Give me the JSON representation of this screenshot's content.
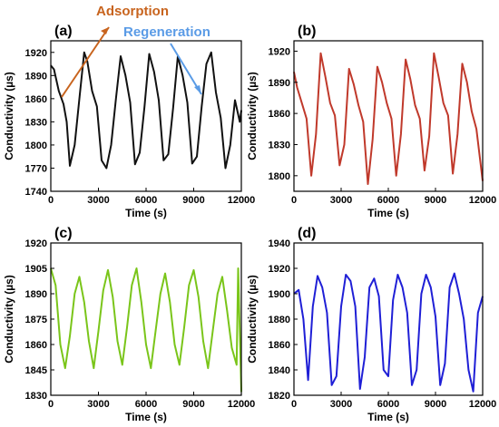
{
  "annotations": {
    "adsorption": "Adsorption",
    "regeneration": "Regeneration",
    "adsorption_color": "#c8641e",
    "regeneration_color": "#5a9be6"
  },
  "chart_data": [
    {
      "panel": "(a)",
      "type": "line",
      "xlabel": "Time (s)",
      "ylabel": "Conductivity (µs)",
      "xlim": [
        0,
        12000
      ],
      "ylim": [
        1740,
        1935
      ],
      "xticks": [
        0,
        3000,
        6000,
        9000,
        12000
      ],
      "yticks": [
        1740,
        1770,
        1800,
        1830,
        1860,
        1890,
        1920
      ],
      "color": "#111111",
      "series": [
        {
          "x": [
            0,
            200,
            500,
            800,
            1000,
            1200,
            1500,
            1800,
            2100,
            2300,
            2600,
            2900,
            3200,
            3500,
            3800,
            4100,
            4400,
            4700,
            5000,
            5300,
            5600,
            5900,
            6200,
            6500,
            6800,
            7100,
            7400,
            7700,
            8000,
            8300,
            8600,
            8900,
            9200,
            9500,
            9800,
            10100,
            10400,
            10700,
            11000,
            11300,
            11600,
            11900,
            12000
          ],
          "y": [
            1903,
            1898,
            1870,
            1853,
            1830,
            1773,
            1800,
            1860,
            1920,
            1908,
            1870,
            1850,
            1780,
            1770,
            1800,
            1860,
            1915,
            1890,
            1855,
            1775,
            1790,
            1850,
            1918,
            1895,
            1858,
            1780,
            1788,
            1848,
            1915,
            1890,
            1855,
            1776,
            1785,
            1850,
            1905,
            1920,
            1868,
            1835,
            1770,
            1800,
            1858,
            1830,
            1845
          ]
        }
      ]
    },
    {
      "panel": "(b)",
      "type": "line",
      "xlabel": "Time (s)",
      "ylabel": "Conductivity (µs)",
      "xlim": [
        0,
        12000
      ],
      "ylim": [
        1785,
        1930
      ],
      "xticks": [
        0,
        3000,
        6000,
        9000,
        12000
      ],
      "yticks": [
        1800,
        1830,
        1860,
        1890,
        1920
      ],
      "color": "#c0392b",
      "series": [
        {
          "x": [
            0,
            200,
            500,
            800,
            1100,
            1400,
            1700,
            2000,
            2300,
            2600,
            2900,
            3200,
            3500,
            3800,
            4100,
            4400,
            4700,
            5000,
            5300,
            5600,
            5900,
            6200,
            6500,
            6800,
            7100,
            7400,
            7700,
            8000,
            8300,
            8600,
            8900,
            9200,
            9500,
            9800,
            10100,
            10400,
            10700,
            11000,
            11300,
            11600,
            12000
          ],
          "y": [
            1900,
            1885,
            1870,
            1855,
            1800,
            1840,
            1918,
            1895,
            1870,
            1858,
            1810,
            1830,
            1903,
            1888,
            1868,
            1852,
            1792,
            1835,
            1905,
            1890,
            1870,
            1855,
            1800,
            1840,
            1912,
            1893,
            1868,
            1855,
            1805,
            1838,
            1918,
            1895,
            1870,
            1858,
            1802,
            1840,
            1908,
            1890,
            1862,
            1845,
            1795
          ]
        }
      ]
    },
    {
      "panel": "(c)",
      "type": "line",
      "xlabel": "Time (s)",
      "ylabel": "Conductivity (µs)",
      "xlim": [
        0,
        12000
      ],
      "ylim": [
        1830,
        1920
      ],
      "xticks": [
        0,
        3000,
        6000,
        9000,
        12000
      ],
      "yticks": [
        1830,
        1845,
        1860,
        1875,
        1890,
        1905,
        1920
      ],
      "color": "#7ac51a",
      "series": [
        {
          "x": [
            0,
            300,
            600,
            900,
            1200,
            1500,
            1800,
            2100,
            2400,
            2700,
            3000,
            3300,
            3600,
            3900,
            4200,
            4500,
            4800,
            5100,
            5400,
            5700,
            6000,
            6300,
            6600,
            6900,
            7200,
            7500,
            7800,
            8100,
            8400,
            8700,
            9000,
            9300,
            9600,
            9900,
            10200,
            10500,
            10800,
            11100,
            11400,
            11700,
            11800,
            12000
          ],
          "y": [
            1905,
            1895,
            1860,
            1846,
            1865,
            1890,
            1900,
            1885,
            1862,
            1846,
            1868,
            1892,
            1904,
            1888,
            1862,
            1848,
            1870,
            1895,
            1905,
            1885,
            1860,
            1846,
            1868,
            1890,
            1902,
            1885,
            1860,
            1848,
            1870,
            1895,
            1904,
            1888,
            1862,
            1846,
            1868,
            1890,
            1900,
            1880,
            1858,
            1848,
            1905,
            1832
          ]
        }
      ]
    },
    {
      "panel": "(d)",
      "type": "line",
      "xlabel": "Time (s)",
      "ylabel": "Conductivity (µs)",
      "xlim": [
        0,
        12000
      ],
      "ylim": [
        1820,
        1940
      ],
      "xticks": [
        0,
        3000,
        6000,
        9000,
        12000
      ],
      "yticks": [
        1820,
        1840,
        1860,
        1880,
        1900,
        1920,
        1940
      ],
      "color": "#1f1fd6",
      "series": [
        {
          "x": [
            0,
            300,
            600,
            900,
            1200,
            1500,
            1800,
            2100,
            2400,
            2700,
            3000,
            3300,
            3600,
            3900,
            4200,
            4500,
            4800,
            5100,
            5400,
            5700,
            6000,
            6300,
            6600,
            6900,
            7200,
            7500,
            7800,
            8100,
            8400,
            8700,
            9000,
            9300,
            9600,
            9900,
            10200,
            10500,
            10800,
            11100,
            11400,
            11700,
            12000
          ],
          "y": [
            1900,
            1903,
            1880,
            1832,
            1890,
            1914,
            1905,
            1885,
            1828,
            1835,
            1890,
            1915,
            1910,
            1890,
            1825,
            1850,
            1905,
            1912,
            1898,
            1840,
            1835,
            1895,
            1915,
            1905,
            1885,
            1828,
            1840,
            1900,
            1915,
            1905,
            1882,
            1828,
            1845,
            1905,
            1916,
            1900,
            1880,
            1840,
            1823,
            1885,
            1898
          ]
        }
      ]
    }
  ]
}
